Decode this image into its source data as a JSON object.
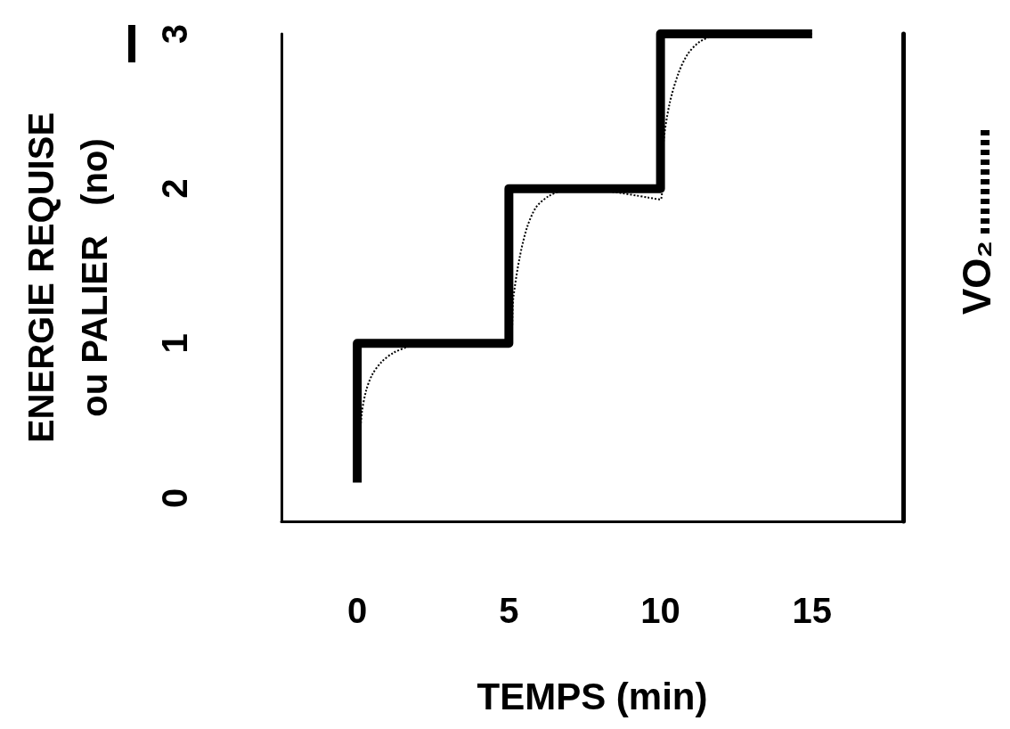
{
  "chart_data": {
    "type": "line",
    "xlabel": "TEMPS (min)",
    "ylabel": "ENERGIE REQUISE\nou PALIER   (no)",
    "y2label": "VO₂",
    "xlim": [
      -2.5,
      18
    ],
    "xticks": [
      0,
      5,
      10,
      15
    ],
    "ylim": [
      -0.15,
      3
    ],
    "yticks": [
      0,
      1,
      2,
      3
    ],
    "grid": false,
    "marker": "none",
    "series": [
      {
        "color": "#000000",
        "line_style": "solid",
        "x": [
          0,
          0,
          5,
          5,
          10,
          10,
          15
        ],
        "values": [
          0.1,
          1,
          1,
          2,
          2,
          3,
          3
        ]
      },
      {
        "color": "#000000",
        "line_style": "dotted",
        "x": [
          0.05,
          0.15,
          0.3,
          0.5,
          0.8,
          1.2,
          1.7,
          2.2,
          5,
          5.15,
          5.35,
          5.6,
          5.9,
          6.3,
          6.8,
          7.3,
          10,
          10.1,
          10.3,
          10.6,
          10.9,
          11.3,
          11.8,
          12.3,
          15
        ],
        "values": [
          0.3,
          0.55,
          0.7,
          0.8,
          0.88,
          0.94,
          0.98,
          1,
          1,
          1.3,
          1.55,
          1.75,
          1.88,
          1.95,
          1.99,
          2,
          1.93,
          2.3,
          2.55,
          2.75,
          2.87,
          2.95,
          2.99,
          3,
          3
        ]
      }
    ]
  }
}
